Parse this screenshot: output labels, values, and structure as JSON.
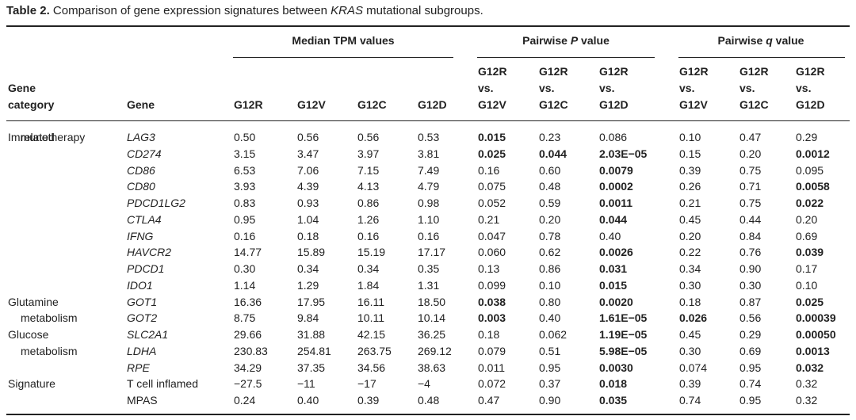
{
  "caption": {
    "label": "Table 2.",
    "before": " Comparison of gene expression signatures between ",
    "gene": "KRAS",
    "after": " mutational subgroups."
  },
  "groups": {
    "tpm": "Median TPM values",
    "p_pre": "Pairwise ",
    "p_var": "P",
    "p_post": " value",
    "q_pre": "Pairwise ",
    "q_var": "q",
    "q_post": " value"
  },
  "headers": {
    "category": "Gene\ncategory",
    "gene": "Gene",
    "tpm": [
      "G12R",
      "G12V",
      "G12C",
      "G12D"
    ],
    "p": [
      "G12R\nvs.\nG12V",
      "G12R\nvs.\nG12C",
      "G12R\nvs.\nG12D"
    ],
    "q": [
      "G12R\nvs.\nG12V",
      "G12R\nvs.\nG12C",
      "G12R\nvs.\nG12D"
    ]
  },
  "rows": [
    {
      "cat1": "Immunotherapy",
      "cat2": "related",
      "gene": "LAG3",
      "italic": true,
      "tpm": [
        "0.50",
        "0.56",
        "0.56",
        "0.53"
      ],
      "p": [
        "0.015",
        "0.23",
        "0.086"
      ],
      "q": [
        "0.10",
        "0.47",
        "0.29"
      ],
      "pb": [
        true,
        false,
        false
      ],
      "qb": [
        false,
        false,
        false
      ]
    },
    {
      "cat1": "",
      "cat2": "",
      "gene": "CD274",
      "italic": true,
      "tpm": [
        "3.15",
        "3.47",
        "3.97",
        "3.81"
      ],
      "p": [
        "0.025",
        "0.044",
        "2.03E−05"
      ],
      "q": [
        "0.15",
        "0.20",
        "0.0012"
      ],
      "pb": [
        true,
        true,
        true
      ],
      "qb": [
        false,
        false,
        true
      ]
    },
    {
      "cat1": "",
      "cat2": "",
      "gene": "CD86",
      "italic": true,
      "tpm": [
        "6.53",
        "7.06",
        "7.15",
        "7.49"
      ],
      "p": [
        "0.16",
        "0.60",
        "0.0079"
      ],
      "q": [
        "0.39",
        "0.75",
        "0.095"
      ],
      "pb": [
        false,
        false,
        true
      ],
      "qb": [
        false,
        false,
        false
      ]
    },
    {
      "cat1": "",
      "cat2": "",
      "gene": "CD80",
      "italic": true,
      "tpm": [
        "3.93",
        "4.39",
        "4.13",
        "4.79"
      ],
      "p": [
        "0.075",
        "0.48",
        "0.0002"
      ],
      "q": [
        "0.26",
        "0.71",
        "0.0058"
      ],
      "pb": [
        false,
        false,
        true
      ],
      "qb": [
        false,
        false,
        true
      ]
    },
    {
      "cat1": "",
      "cat2": "",
      "gene": "PDCD1LG2",
      "italic": true,
      "tpm": [
        "0.83",
        "0.93",
        "0.86",
        "0.98"
      ],
      "p": [
        "0.052",
        "0.59",
        "0.0011"
      ],
      "q": [
        "0.21",
        "0.75",
        "0.022"
      ],
      "pb": [
        false,
        false,
        true
      ],
      "qb": [
        false,
        false,
        true
      ]
    },
    {
      "cat1": "",
      "cat2": "",
      "gene": "CTLA4",
      "italic": true,
      "tpm": [
        "0.95",
        "1.04",
        "1.26",
        "1.10"
      ],
      "p": [
        "0.21",
        "0.20",
        "0.044"
      ],
      "q": [
        "0.45",
        "0.44",
        "0.20"
      ],
      "pb": [
        false,
        false,
        true
      ],
      "qb": [
        false,
        false,
        false
      ]
    },
    {
      "cat1": "",
      "cat2": "",
      "gene": "IFNG",
      "italic": true,
      "tpm": [
        "0.16",
        "0.18",
        "0.16",
        "0.16"
      ],
      "p": [
        "0.047",
        "0.78",
        "0.40"
      ],
      "q": [
        "0.20",
        "0.84",
        "0.69"
      ],
      "pb": [
        false,
        false,
        false
      ],
      "qb": [
        false,
        false,
        false
      ]
    },
    {
      "cat1": "",
      "cat2": "",
      "gene": "HAVCR2",
      "italic": true,
      "tpm": [
        "14.77",
        "15.89",
        "15.19",
        "17.17"
      ],
      "p": [
        "0.060",
        "0.62",
        "0.0026"
      ],
      "q": [
        "0.22",
        "0.76",
        "0.039"
      ],
      "pb": [
        false,
        false,
        true
      ],
      "qb": [
        false,
        false,
        true
      ]
    },
    {
      "cat1": "",
      "cat2": "",
      "gene": "PDCD1",
      "italic": true,
      "tpm": [
        "0.30",
        "0.34",
        "0.34",
        "0.35"
      ],
      "p": [
        "0.13",
        "0.86",
        "0.031"
      ],
      "q": [
        "0.34",
        "0.90",
        "0.17"
      ],
      "pb": [
        false,
        false,
        true
      ],
      "qb": [
        false,
        false,
        false
      ]
    },
    {
      "cat1": "",
      "cat2": "",
      "gene": "IDO1",
      "italic": true,
      "tpm": [
        "1.14",
        "1.29",
        "1.84",
        "1.31"
      ],
      "p": [
        "0.099",
        "0.10",
        "0.015"
      ],
      "q": [
        "0.30",
        "0.30",
        "0.10"
      ],
      "pb": [
        false,
        false,
        true
      ],
      "qb": [
        false,
        false,
        false
      ]
    },
    {
      "cat1": "Glutamine",
      "cat2": "",
      "gene": "GOT1",
      "italic": true,
      "tpm": [
        "16.36",
        "17.95",
        "16.11",
        "18.50"
      ],
      "p": [
        "0.038",
        "0.80",
        "0.0020"
      ],
      "q": [
        "0.18",
        "0.87",
        "0.025"
      ],
      "pb": [
        true,
        false,
        true
      ],
      "qb": [
        false,
        false,
        true
      ]
    },
    {
      "cat1": "",
      "cat2": "metabolism",
      "gene": "GOT2",
      "italic": true,
      "tpm": [
        "8.75",
        "9.84",
        "10.11",
        "10.14"
      ],
      "p": [
        "0.003",
        "0.40",
        "1.61E−05"
      ],
      "q": [
        "0.026",
        "0.56",
        "0.00039"
      ],
      "pb": [
        true,
        false,
        true
      ],
      "qb": [
        true,
        false,
        true
      ]
    },
    {
      "cat1": "Glucose",
      "cat2": "",
      "gene": "SLC2A1",
      "italic": true,
      "tpm": [
        "29.66",
        "31.88",
        "42.15",
        "36.25"
      ],
      "p": [
        "0.18",
        "0.062",
        "1.19E−05"
      ],
      "q": [
        "0.45",
        "0.29",
        "0.00050"
      ],
      "pb": [
        false,
        false,
        true
      ],
      "qb": [
        false,
        false,
        true
      ]
    },
    {
      "cat1": "",
      "cat2": "metabolism",
      "gene": "LDHA",
      "italic": true,
      "tpm": [
        "230.83",
        "254.81",
        "263.75",
        "269.12"
      ],
      "p": [
        "0.079",
        "0.51",
        "5.98E−05"
      ],
      "q": [
        "0.30",
        "0.69",
        "0.0013"
      ],
      "pb": [
        false,
        false,
        true
      ],
      "qb": [
        false,
        false,
        true
      ]
    },
    {
      "cat1": "",
      "cat2": "",
      "gene": "RPE",
      "italic": true,
      "tpm": [
        "34.29",
        "37.35",
        "34.56",
        "38.63"
      ],
      "p": [
        "0.011",
        "0.95",
        "0.0030"
      ],
      "q": [
        "0.074",
        "0.95",
        "0.032"
      ],
      "pb": [
        false,
        false,
        true
      ],
      "qb": [
        false,
        false,
        true
      ]
    },
    {
      "cat1": "Signature",
      "cat2": "",
      "gene": "T cell inflamed",
      "italic": false,
      "tpm": [
        "−27.5",
        "−11",
        "−17",
        "−4"
      ],
      "p": [
        "0.072",
        "0.37",
        "0.018"
      ],
      "q": [
        "0.39",
        "0.74",
        "0.32"
      ],
      "pb": [
        false,
        false,
        true
      ],
      "qb": [
        false,
        false,
        false
      ]
    },
    {
      "cat1": "",
      "cat2": "",
      "gene": "MPAS",
      "italic": false,
      "tpm": [
        "0.24",
        "0.40",
        "0.39",
        "0.48"
      ],
      "p": [
        "0.47",
        "0.90",
        "0.035"
      ],
      "q": [
        "0.74",
        "0.95",
        "0.32"
      ],
      "pb": [
        false,
        false,
        true
      ],
      "qb": [
        false,
        false,
        false
      ]
    }
  ]
}
